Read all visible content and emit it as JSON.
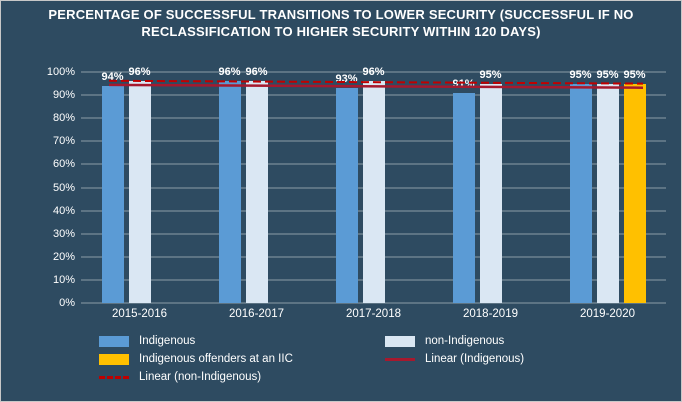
{
  "colors": {
    "background": "#2E4B61",
    "text": "#FFFFFF",
    "gridline": "rgba(255,255,255,0.45)",
    "indigenous": "#5B9BD5",
    "non_indigenous": "#DAE7F3",
    "iic": "#FFC000",
    "linear_indigenous": "#A6192E",
    "linear_non_indigenous": "#C00000"
  },
  "chart_data": {
    "type": "bar",
    "title": "PERCENTAGE OF SUCCESSFUL TRANSITIONS TO LOWER SECURITY (SUCCESSFUL IF NO RECLASSIFICATION TO HIGHER SECURITY WITHIN 120 DAYS)",
    "categories": [
      "2015-2016",
      "2016-2017",
      "2017-2018",
      "2018-2019",
      "2019-2020"
    ],
    "series": [
      {
        "name": "Indigenous",
        "color_key": "indigenous",
        "values": [
          94,
          96,
          93,
          91,
          95
        ]
      },
      {
        "name": "non-Indigenous",
        "color_key": "non_indigenous",
        "values": [
          96,
          96,
          96,
          95,
          95
        ]
      },
      {
        "name": "Indigenous offenders at an IIC",
        "color_key": "iic",
        "values": [
          null,
          null,
          null,
          null,
          95
        ]
      }
    ],
    "trendlines": [
      {
        "name": "Linear (Indigenous)",
        "color_key": "linear_indigenous",
        "style": "solid",
        "start": 94.4,
        "end": 93.2
      },
      {
        "name": "Linear (non-Indigenous)",
        "color_key": "linear_non_indigenous",
        "style": "dashed",
        "start": 96.2,
        "end": 95.0
      }
    ],
    "ylim": [
      0,
      100
    ],
    "ytick_labels": [
      "0%",
      "10%",
      "20%",
      "30%",
      "40%",
      "50%",
      "60%",
      "70%",
      "80%",
      "90%",
      "100%"
    ],
    "data_label_suffix": "%",
    "grid": true,
    "legend_position": "bottom"
  },
  "legend": {
    "items": [
      {
        "label": "Indigenous",
        "type": "box",
        "color_key": "indigenous"
      },
      {
        "label": "non-Indigenous",
        "type": "box",
        "color_key": "non_indigenous"
      },
      {
        "label": "Indigenous offenders at an IIC",
        "type": "box",
        "color_key": "iic"
      },
      {
        "label": "Linear (Indigenous)",
        "type": "line",
        "color_key": "linear_indigenous"
      },
      {
        "label": "Linear (non-Indigenous)",
        "type": "dashed-line",
        "color_key": "linear_non_indigenous"
      }
    ]
  }
}
